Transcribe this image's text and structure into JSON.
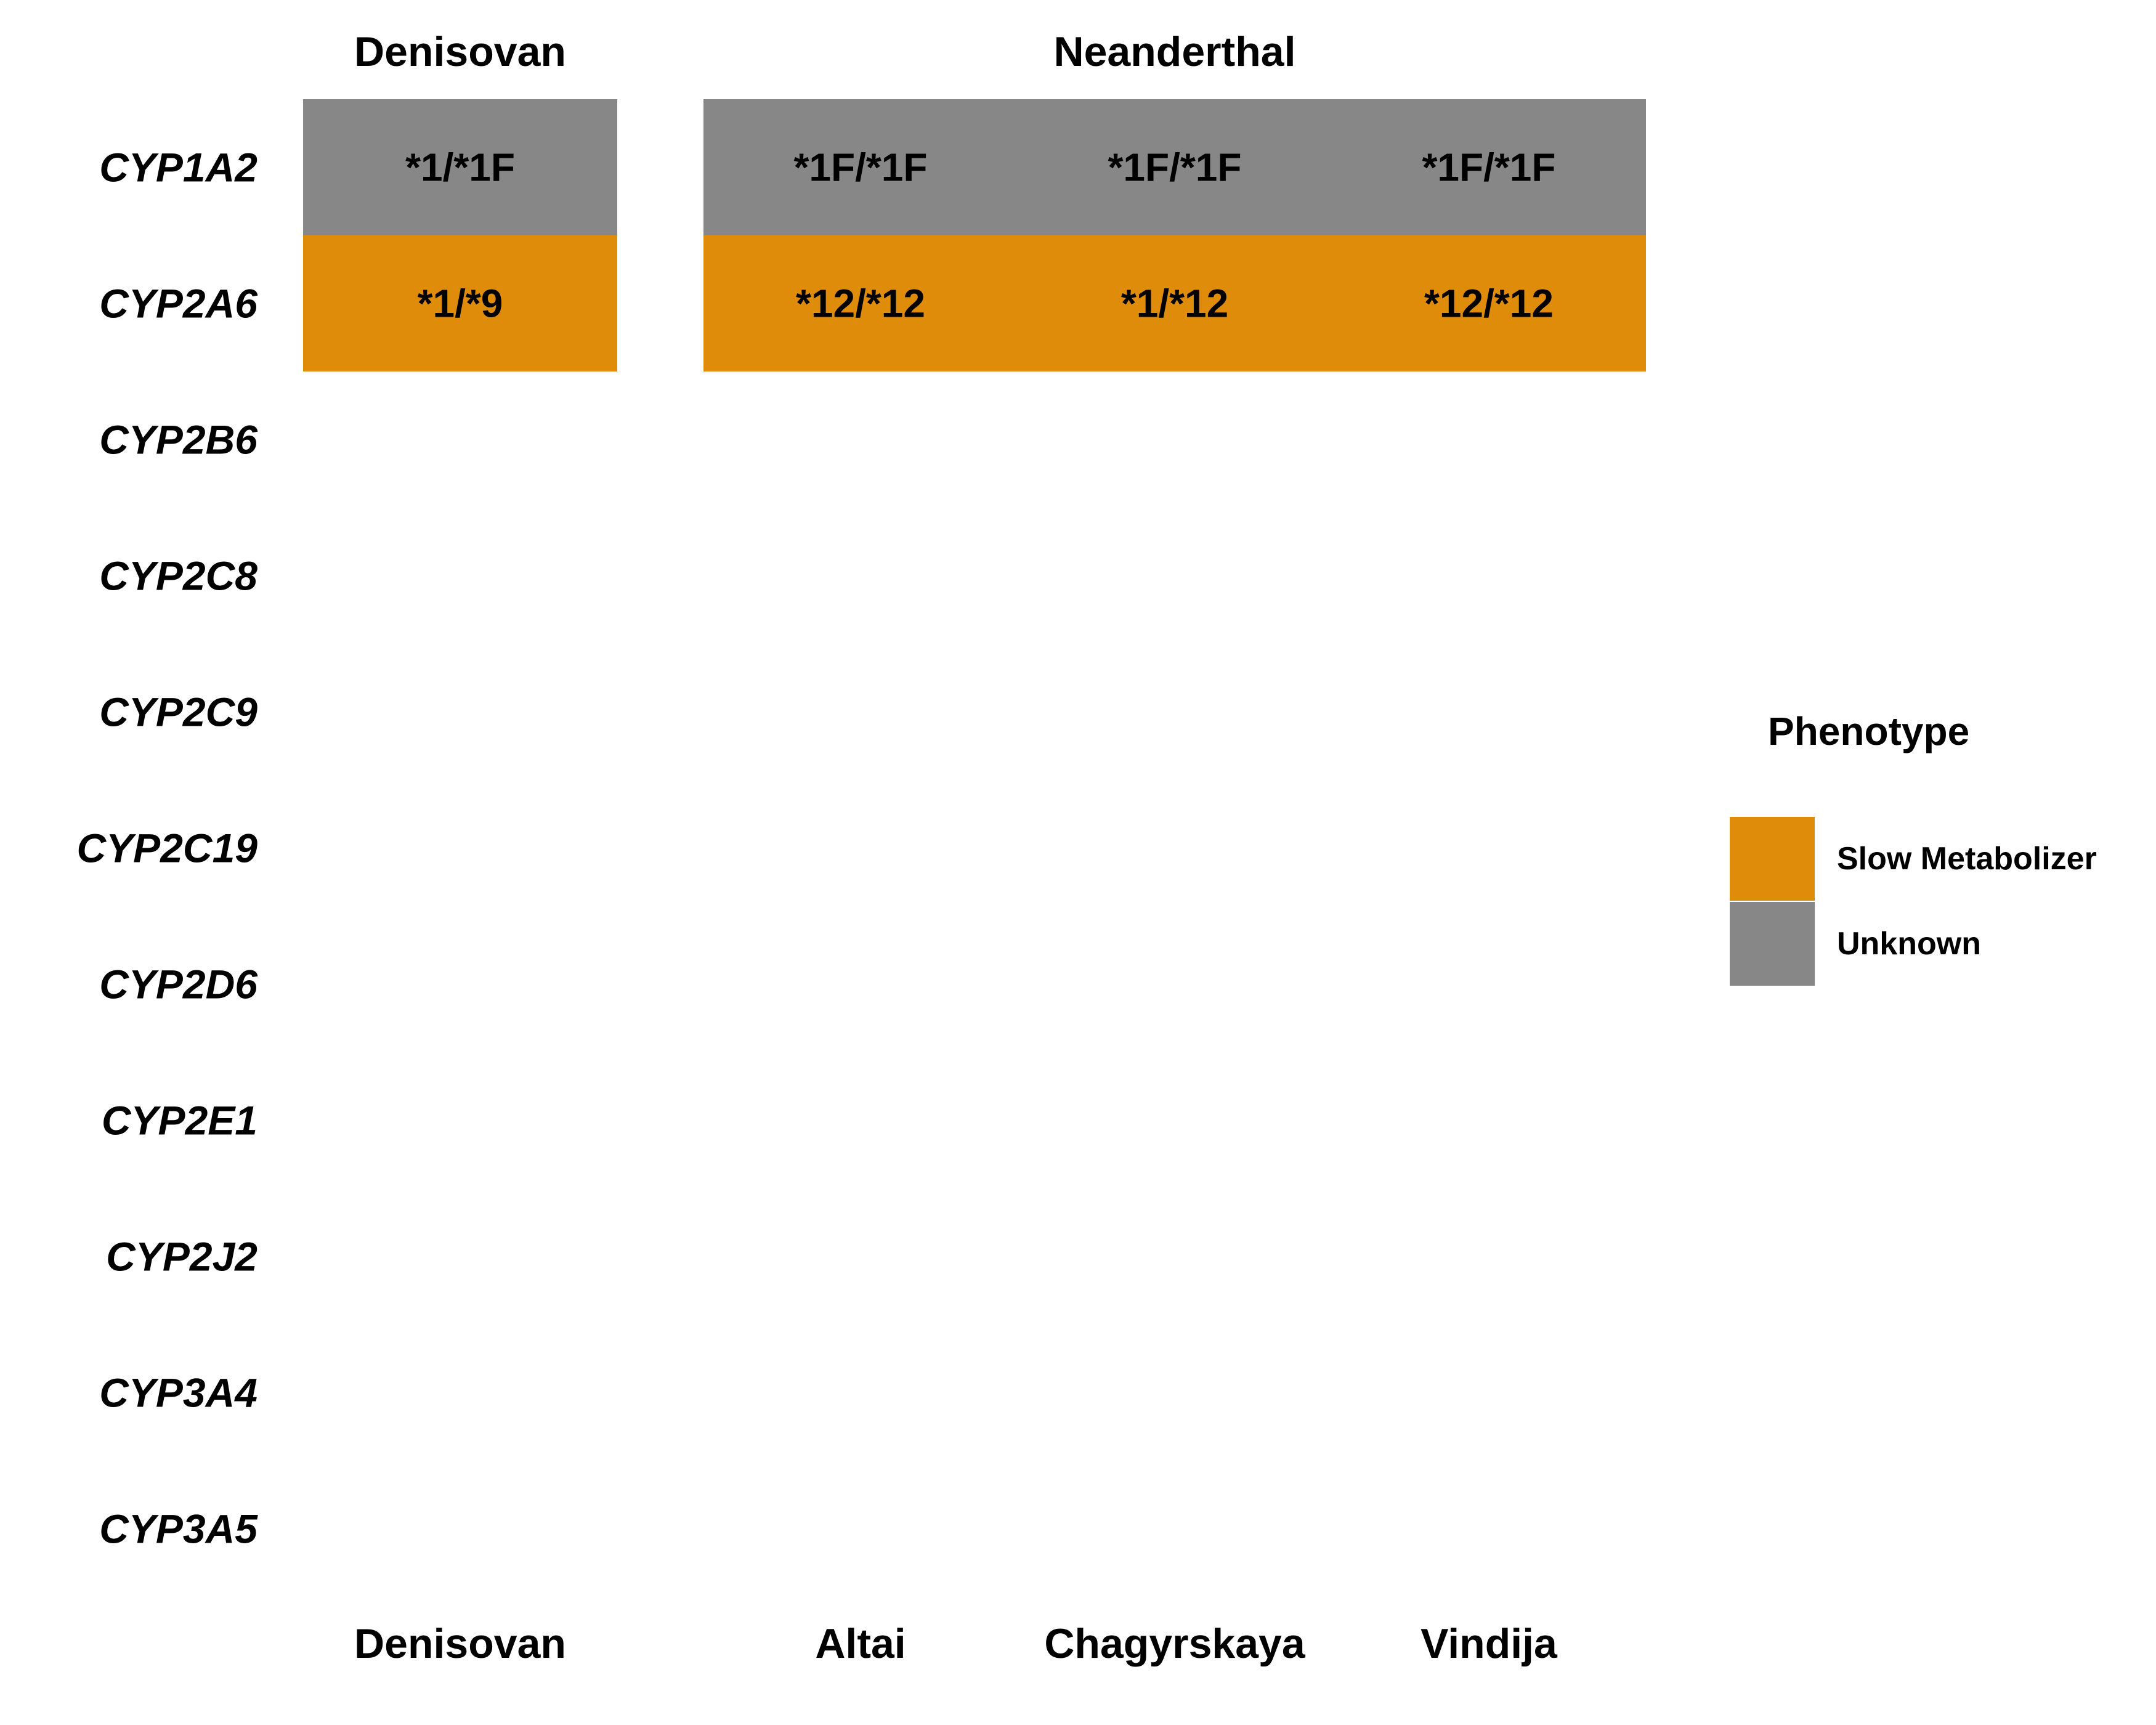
{
  "chart_data": {
    "type": "heatmap",
    "facets": [
      "Denisovan",
      "Neanderthal"
    ],
    "samples": [
      {
        "name": "Denisovan",
        "facet": "Denisovan"
      },
      {
        "name": "Altai",
        "facet": "Neanderthal"
      },
      {
        "name": "Chagyrskaya",
        "facet": "Neanderthal"
      },
      {
        "name": "Vindija",
        "facet": "Neanderthal"
      }
    ],
    "genes": [
      "CYP1A2",
      "CYP2A6",
      "CYP2B6",
      "CYP2C8",
      "CYP2C9",
      "CYP2C19",
      "CYP2D6",
      "CYP2E1",
      "CYP2J2",
      "CYP3A4",
      "CYP3A5"
    ],
    "cells": [
      {
        "gene": "CYP1A2",
        "sample": "Denisovan",
        "genotype": "*1/*1F",
        "phenotype": "Unknown"
      },
      {
        "gene": "CYP1A2",
        "sample": "Altai",
        "genotype": "*1F/*1F",
        "phenotype": "Unknown"
      },
      {
        "gene": "CYP1A2",
        "sample": "Chagyrskaya",
        "genotype": "*1F/*1F",
        "phenotype": "Unknown"
      },
      {
        "gene": "CYP1A2",
        "sample": "Vindija",
        "genotype": "*1F/*1F",
        "phenotype": "Unknown"
      },
      {
        "gene": "CYP2A6",
        "sample": "Denisovan",
        "genotype": "*1/*9",
        "phenotype": "Slow Metabolizer"
      },
      {
        "gene": "CYP2A6",
        "sample": "Altai",
        "genotype": "*12/*12",
        "phenotype": "Slow Metabolizer"
      },
      {
        "gene": "CYP2A6",
        "sample": "Chagyrskaya",
        "genotype": "*1/*12",
        "phenotype": "Slow Metabolizer"
      },
      {
        "gene": "CYP2A6",
        "sample": "Vindija",
        "genotype": "*12/*12",
        "phenotype": "Slow Metabolizer"
      }
    ],
    "legend": {
      "title": "Phenotype",
      "position": "right",
      "items": [
        {
          "label": "Slow Metabolizer",
          "color": "#DE8C0A"
        },
        {
          "label": "Unknown",
          "color": "#878787"
        }
      ]
    }
  }
}
